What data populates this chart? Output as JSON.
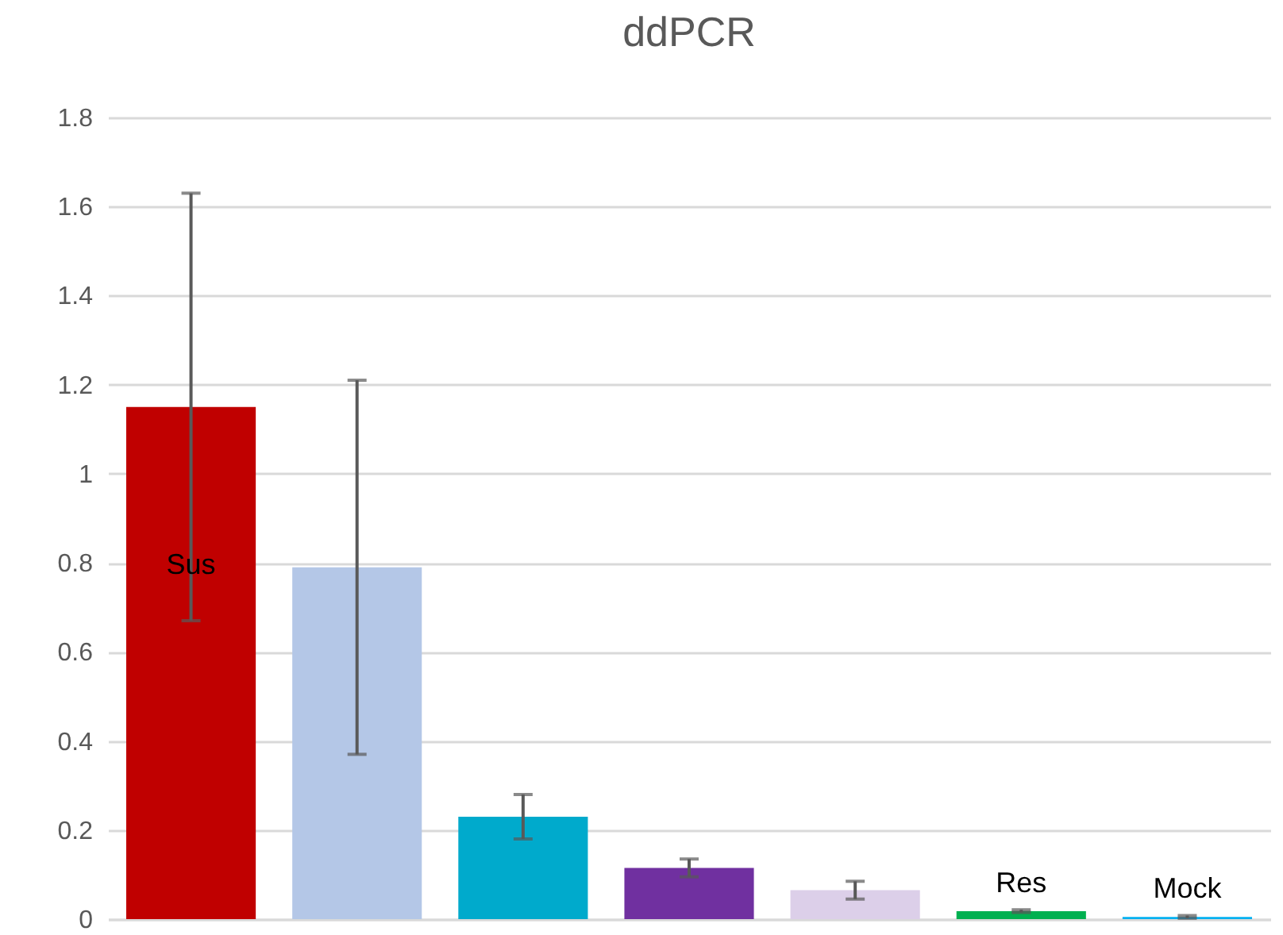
{
  "chart_data": {
    "type": "bar",
    "title": "ddPCR",
    "categories": [
      "Sus",
      null,
      null,
      null,
      null,
      "Res",
      "Mock"
    ],
    "values": [
      1.15,
      0.79,
      0.23,
      0.115,
      0.065,
      0.018,
      0.005
    ],
    "errors": [
      0.48,
      0.42,
      0.05,
      0.02,
      0.02,
      0.003,
      0.003
    ],
    "colors": [
      "#c00000",
      "#b4c7e7",
      "#00aacc",
      "#7030a0",
      "#dccfe9",
      "#00b050",
      "#00b0f0"
    ],
    "ylim": [
      0,
      1.8
    ],
    "yticks": [
      0,
      0.2,
      0.4,
      0.6,
      0.8,
      1,
      1.2,
      1.4,
      1.6,
      1.8
    ],
    "grid": "y"
  }
}
